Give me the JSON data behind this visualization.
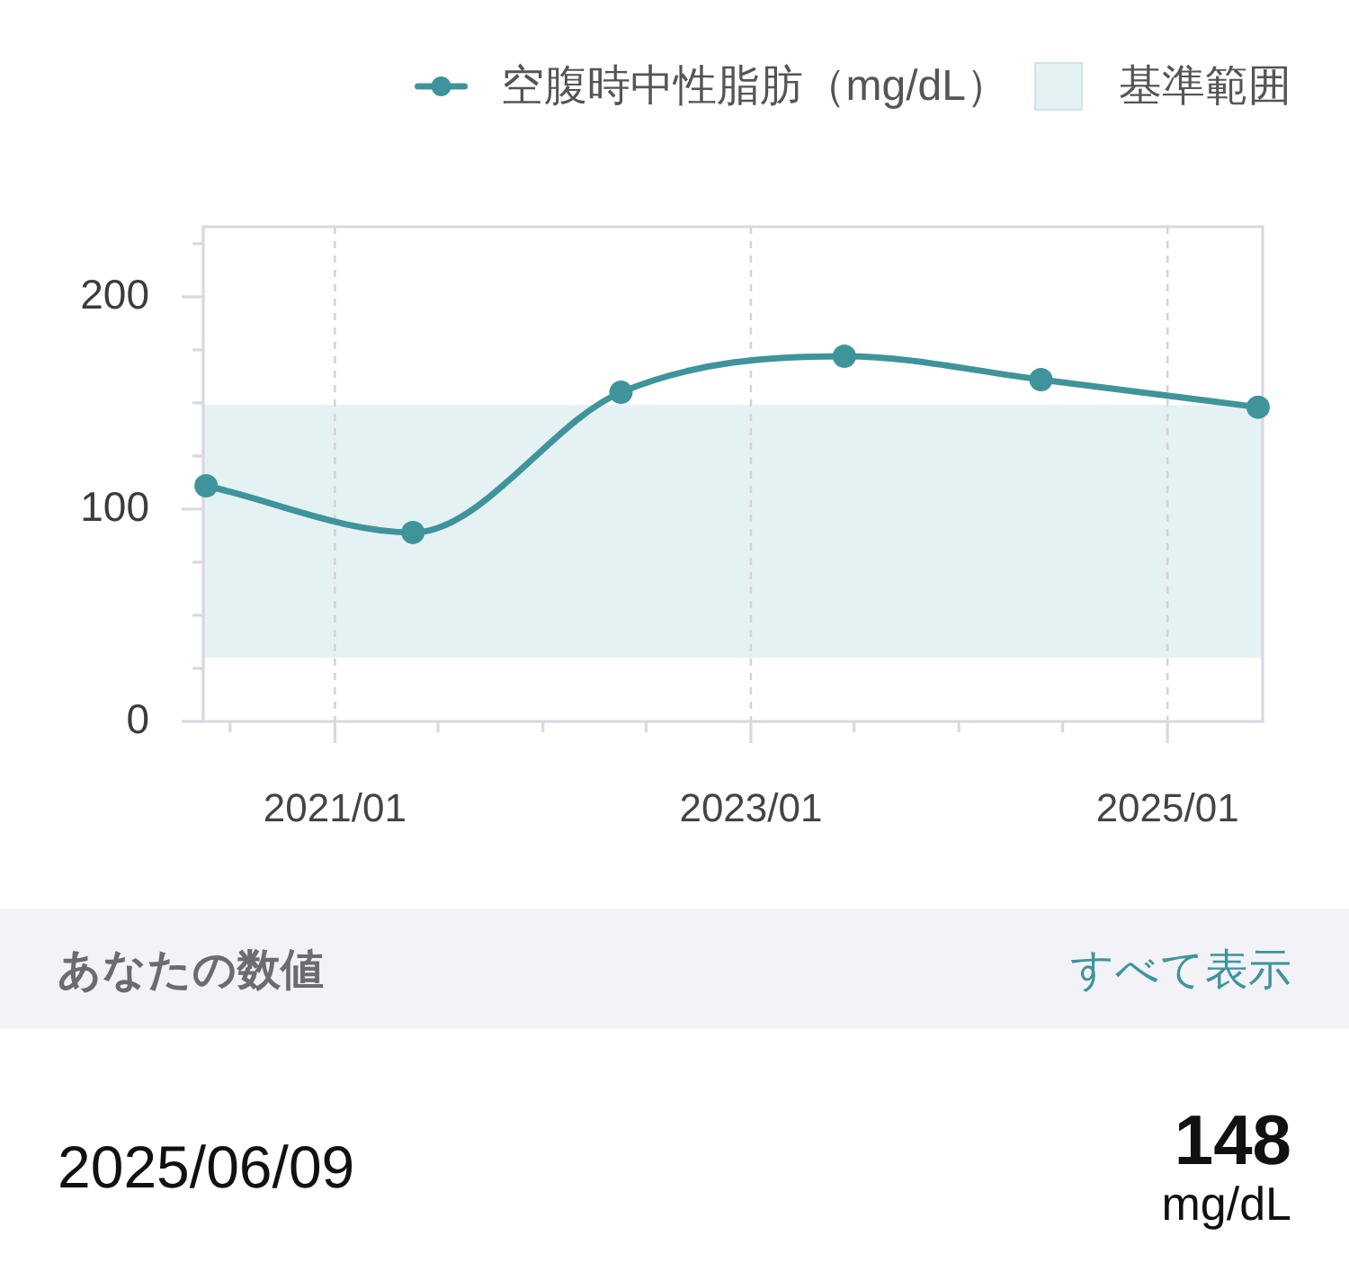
{
  "chart_data": {
    "type": "line",
    "x": [
      "2020-05-20",
      "2021-05-18",
      "2022-05-18",
      "2023-06-14",
      "2024-05-24",
      "2025-06-09"
    ],
    "series": [
      {
        "name": "空腹時中性脂肪（mg/dL）",
        "color": "#3f949c",
        "values": [
          111,
          89,
          155,
          172,
          161,
          148
        ]
      }
    ],
    "xlim": [
      "2020-05-15",
      "2025-06-17"
    ],
    "xticks": [
      {
        "value": "2020-07",
        "label": null
      },
      {
        "value": "2021-01",
        "label": "2021/01"
      },
      {
        "value": "2021-07",
        "label": null
      },
      {
        "value": "2022-01",
        "label": null
      },
      {
        "value": "2022-07",
        "label": null
      },
      {
        "value": "2023-01",
        "label": "2023/01"
      },
      {
        "value": "2023-07",
        "label": null
      },
      {
        "value": "2024-01",
        "label": null
      },
      {
        "value": "2024-07",
        "label": null
      },
      {
        "value": "2025-01",
        "label": "2025/01"
      }
    ],
    "ylim": [
      0,
      233
    ],
    "yticks": [
      0,
      {
        "value": 25,
        "label": null
      },
      {
        "value": 50,
        "label": null
      },
      {
        "value": 75,
        "label": null
      },
      100,
      {
        "value": 125,
        "label": null
      },
      {
        "value": 150,
        "label": null
      },
      {
        "value": 175,
        "label": null
      },
      200,
      {
        "value": 225,
        "label": null
      }
    ],
    "bands": [
      {
        "axis": "y",
        "from": 30,
        "to": 149,
        "label": "基準範囲",
        "color": "#e5f2f3"
      }
    ],
    "grid": "x",
    "legend": "top right",
    "marker": "circle",
    "annotations": [
      "あなたの数値",
      "すべて表示",
      "2025/06/09",
      "148",
      "mg/dL"
    ]
  }
}
